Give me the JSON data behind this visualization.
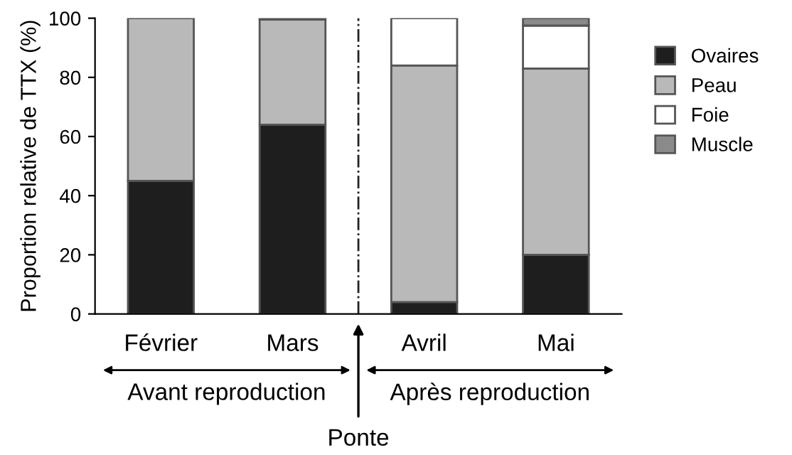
{
  "chart_data": {
    "type": "bar",
    "stacked": true,
    "ylabel": "Proportion relative de TTX (%)",
    "categories": [
      "Février",
      "Mars",
      "Avril",
      "Mai"
    ],
    "series": [
      {
        "name": "Ovaires",
        "color": "#1e1e1e",
        "values": [
          45,
          64,
          4,
          20
        ]
      },
      {
        "name": "Peau",
        "color": "#b9b9b9",
        "values": [
          55,
          35.5,
          80,
          63
        ]
      },
      {
        "name": "Foie",
        "color": "#ffffff",
        "values": [
          null,
          0.5,
          16,
          14.5
        ]
      },
      {
        "name": "Muscle",
        "color": "#8a8a8a",
        "values": [
          null,
          null,
          null,
          2.5
        ]
      }
    ],
    "ylim": [
      0,
      100
    ],
    "yticks": [
      0,
      20,
      40,
      60,
      80,
      100
    ],
    "annotations": [
      "Avant reproduction",
      "Après reproduction",
      "Ponte"
    ],
    "legend": "right",
    "grid": false
  }
}
